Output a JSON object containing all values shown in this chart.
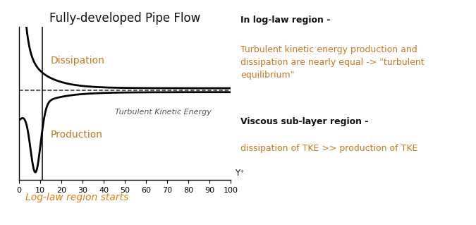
{
  "title": "Fully-developed Pipe Flow",
  "xlabel": "Y⁺",
  "xmin": 0,
  "xmax": 100,
  "xticks": [
    0,
    10,
    20,
    30,
    40,
    50,
    60,
    70,
    80,
    90,
    100
  ],
  "xticklabels": [
    "0",
    "10",
    "20",
    "30",
    "40",
    "50",
    "60",
    "70",
    "80",
    "90",
    "100"
  ],
  "vertical_line_x": 11,
  "dissipation_label": "Dissipation",
  "production_label": "Production",
  "dissipation_label_color": "#c87820",
  "production_label_color": "#c87820",
  "tke_label": "Turbulent Kinetic Energy",
  "tke_label_color": "#555555",
  "loglaw_label": "Log-law region starts",
  "loglaw_label_color": "#e08010",
  "annotation_title_1": "In log-law region -",
  "annotation_body_1": "Turbulent kinetic energy production and\ndissipation are nearly equal -> \"turbulent\nequilibrium\"",
  "annotation_title_2": "Viscous sub-layer region -",
  "annotation_body_2": "dissipation of TKE >> production of TKE",
  "annotation_color_title": "#111111",
  "annotation_color_body": "#c87820",
  "background_color": "#ffffff"
}
